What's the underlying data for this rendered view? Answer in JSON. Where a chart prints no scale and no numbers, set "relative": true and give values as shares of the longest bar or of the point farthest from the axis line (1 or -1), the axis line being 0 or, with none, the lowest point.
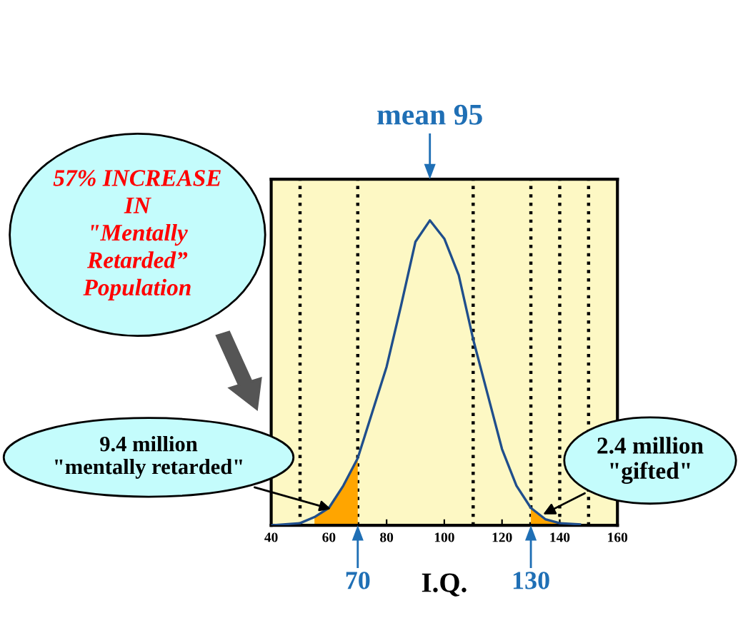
{
  "chart_data": {
    "type": "line",
    "relative": true,
    "xlabel": "I.Q.",
    "xlim": [
      40,
      160
    ],
    "xticks": [
      40,
      60,
      80,
      100,
      120,
      140,
      160
    ],
    "series": [
      {
        "type": "area",
        "color": "#ffa500",
        "x": [
          55,
          60,
          65,
          70
        ],
        "values": [
          0.027,
          0.057,
          0.13,
          0.22
        ]
      },
      {
        "type": "area",
        "color": "#ffa500",
        "x": [
          130,
          135,
          140
        ],
        "values": [
          0.057,
          0.02,
          0.007
        ]
      },
      {
        "color": "#1f4e8c",
        "x": [
          40,
          50,
          55,
          60,
          65,
          70,
          75,
          80,
          85,
          90,
          95,
          100,
          105,
          110,
          115,
          120,
          125,
          130,
          135,
          140,
          147
        ],
        "values": [
          0,
          0.007,
          0.027,
          0.057,
          0.13,
          0.22,
          0.37,
          0.52,
          0.72,
          0.93,
          1.0,
          0.94,
          0.82,
          0.61,
          0.43,
          0.25,
          0.13,
          0.057,
          0.02,
          0.007,
          0.003
        ]
      }
    ],
    "ref_lines": [
      {
        "axis": "x",
        "value": 50,
        "color": "#000000",
        "line_style": "dotted"
      },
      {
        "axis": "x",
        "value": 70,
        "color": "#000000",
        "line_style": "dotted"
      },
      {
        "axis": "x",
        "value": 110,
        "color": "#000000",
        "line_style": "dotted"
      },
      {
        "axis": "x",
        "value": 130,
        "color": "#000000",
        "line_style": "dotted"
      },
      {
        "axis": "x",
        "value": 140,
        "color": "#000000",
        "line_style": "dotted"
      },
      {
        "axis": "x",
        "value": 150,
        "color": "#000000",
        "line_style": "dotted"
      }
    ],
    "annotations": [
      "mean 95",
      "70",
      "130",
      "57% INCREASE\nIN\n\"Mentally\nRetarded”\nPopulation",
      {
        "text": "9.4 million\n\"mentally retarded\"",
        "x": 62,
        "y": 0.05
      },
      {
        "text": "2.4 million\n\"gifted\"",
        "x": 133,
        "y": 0.03
      }
    ]
  }
}
